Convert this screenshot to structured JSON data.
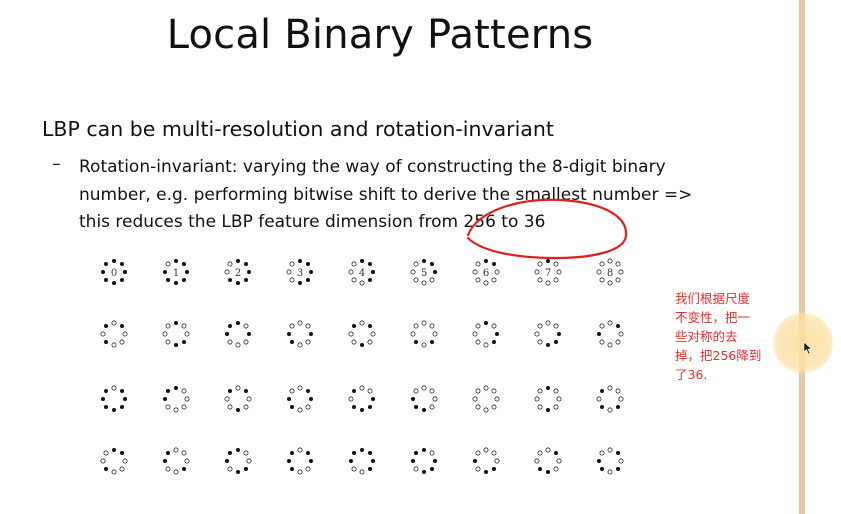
{
  "slide": {
    "title": "Local Binary Patterns",
    "bullet_main": "LBP can be multi-resolution and rotation-invariant",
    "sub_dash": "–",
    "sub_lines": [
      "Rotation-invariant: varying the way of constructing the 8-digit binary",
      "number, e.g. performing bitwise shift to derive the smallest number =>",
      "this reduces the LBP feature dimension from 256 to 36"
    ]
  },
  "figure": {
    "header_labels": [
      "0",
      "1",
      "2",
      "3",
      "4",
      "5",
      "6",
      "7",
      "8"
    ]
  },
  "note": {
    "lines": [
      "我们根据尺度",
      "不变性，把一",
      "些对称的去",
      "掉，把256降到",
      "了36."
    ],
    "color": "#e0312c"
  },
  "colors": {
    "annotation": "#e0201c",
    "rail": "#e6c9a2",
    "cursor_highlight": "#fce0a0"
  },
  "icons": [
    "mouse-cursor-icon"
  ]
}
